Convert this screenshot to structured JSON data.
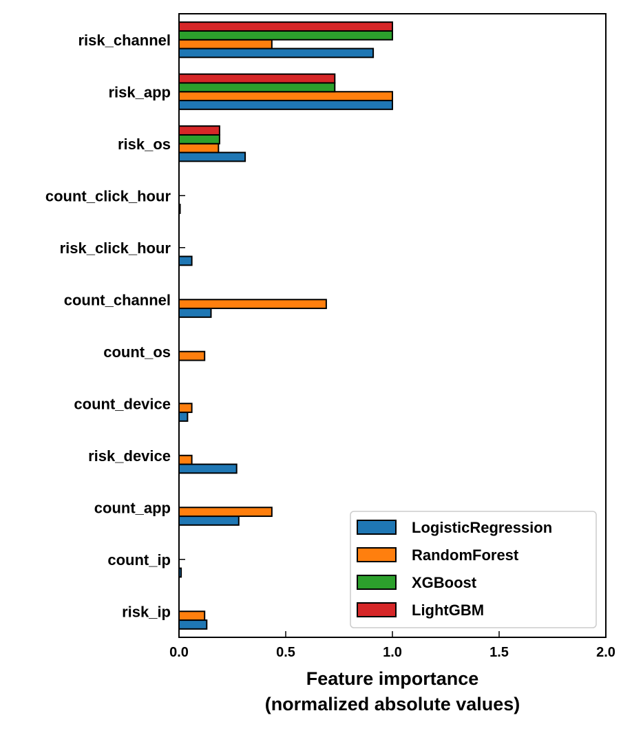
{
  "chart_data": {
    "type": "bar",
    "orientation": "horizontal",
    "title": "",
    "xlabel": [
      "Feature importance",
      "(normalized absolute values)"
    ],
    "ylabel": "",
    "xlim": [
      0,
      2.0
    ],
    "xticks": [
      "0.0",
      "0.5",
      "1.0",
      "1.5",
      "2.0"
    ],
    "categories": [
      "risk_channel",
      "risk_app",
      "risk_os",
      "count_click_hour",
      "risk_click_hour",
      "count_channel",
      "count_os",
      "count_device",
      "risk_device",
      "count_app",
      "count_ip",
      "risk_ip"
    ],
    "series": [
      {
        "name": "LogisticRegression",
        "color": "#1f77b4",
        "values": [
          0.91,
          1.0,
          0.31,
          0.005,
          0.06,
          0.15,
          0.0,
          0.04,
          0.27,
          0.28,
          0.01,
          0.13
        ]
      },
      {
        "name": "RandomForest",
        "color": "#ff7f0e",
        "values": [
          0.435,
          1.0,
          0.185,
          0.0,
          0.0,
          0.69,
          0.12,
          0.06,
          0.06,
          0.435,
          0.0,
          0.12
        ]
      },
      {
        "name": "XGBoost",
        "color": "#2ca02c",
        "values": [
          1.0,
          0.73,
          0.19,
          0.0,
          0.0,
          0.0,
          0.0,
          0.0,
          0.0,
          0.0,
          0.0,
          0.0
        ]
      },
      {
        "name": "LightGBM",
        "color": "#d62728",
        "values": [
          1.0,
          0.73,
          0.19,
          0.0,
          0.0,
          0.0,
          0.0,
          0.0,
          0.0,
          0.0,
          0.0,
          0.0
        ]
      }
    ],
    "grid": false,
    "legend_position": "lower-right"
  }
}
